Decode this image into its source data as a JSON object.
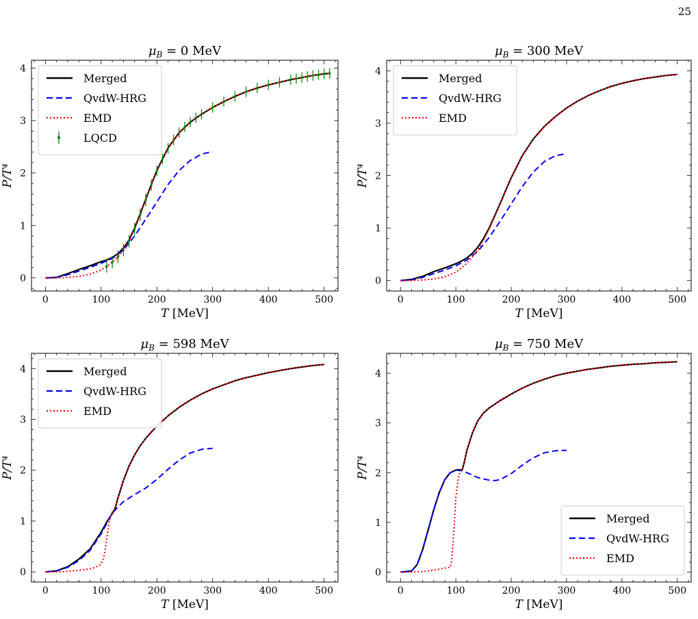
{
  "page": {
    "number": "25"
  },
  "chart_data": [
    {
      "type": "line",
      "title": "μB = 0 MeV",
      "xlabel": "T [MeV]",
      "ylabel": "P/T⁴",
      "xlim": [
        -25,
        525
      ],
      "ylim": [
        -0.25,
        4.15
      ],
      "xticks": [
        0,
        100,
        200,
        300,
        400,
        500
      ],
      "yticks": [
        0,
        1,
        2,
        3,
        4
      ],
      "legend_position": "upper-left",
      "series": [
        {
          "name": "Merged",
          "color": "#000000",
          "style": "solid",
          "x": [
            0,
            20,
            40,
            60,
            80,
            100,
            110,
            120,
            130,
            140,
            150,
            160,
            170,
            180,
            190,
            200,
            220,
            240,
            260,
            280,
            300,
            320,
            340,
            360,
            380,
            400,
            420,
            440,
            460,
            480,
            500,
            510
          ],
          "y": [
            0,
            0.01,
            0.08,
            0.16,
            0.23,
            0.31,
            0.34,
            0.39,
            0.46,
            0.57,
            0.72,
            0.95,
            1.22,
            1.5,
            1.78,
            2.05,
            2.48,
            2.77,
            2.97,
            3.12,
            3.25,
            3.36,
            3.46,
            3.55,
            3.62,
            3.68,
            3.73,
            3.78,
            3.82,
            3.86,
            3.89,
            3.9
          ]
        },
        {
          "name": "QvdW-HRG",
          "color": "#0000ff",
          "style": "dashed",
          "x": [
            0,
            20,
            40,
            60,
            80,
            100,
            120,
            140,
            160,
            180,
            200,
            220,
            240,
            260,
            280,
            300
          ],
          "y": [
            0,
            0.01,
            0.06,
            0.13,
            0.2,
            0.28,
            0.37,
            0.53,
            0.8,
            1.12,
            1.45,
            1.78,
            2.05,
            2.24,
            2.36,
            2.41
          ]
        },
        {
          "name": "EMD",
          "color": "#ff0000",
          "style": "dotted",
          "x": [
            0,
            20,
            40,
            60,
            80,
            100,
            110,
            120,
            130,
            140,
            150,
            160,
            170,
            180,
            190,
            200,
            220,
            240,
            260,
            280,
            300,
            320,
            340,
            360,
            380,
            400,
            420,
            440,
            460,
            480,
            500,
            510
          ],
          "y": [
            0,
            0,
            0.01,
            0.03,
            0.07,
            0.15,
            0.22,
            0.3,
            0.4,
            0.53,
            0.7,
            0.93,
            1.2,
            1.49,
            1.77,
            2.04,
            2.47,
            2.77,
            2.97,
            3.12,
            3.25,
            3.36,
            3.46,
            3.55,
            3.62,
            3.68,
            3.73,
            3.78,
            3.82,
            3.86,
            3.89,
            3.9
          ]
        },
        {
          "name": "LQCD",
          "color": "#008000",
          "style": "errorbar",
          "x": [
            110,
            120,
            130,
            140,
            150,
            160,
            170,
            180,
            190,
            200,
            210,
            220,
            230,
            240,
            250,
            260,
            270,
            280,
            300,
            320,
            340,
            360,
            380,
            400,
            420,
            440,
            450,
            460,
            470,
            480,
            490,
            500,
            510
          ],
          "y": [
            0.22,
            0.3,
            0.4,
            0.53,
            0.7,
            0.93,
            1.2,
            1.49,
            1.77,
            2.04,
            2.27,
            2.47,
            2.63,
            2.77,
            2.88,
            2.97,
            3.05,
            3.12,
            3.25,
            3.36,
            3.46,
            3.55,
            3.62,
            3.68,
            3.73,
            3.78,
            3.8,
            3.82,
            3.84,
            3.86,
            3.87,
            3.89,
            3.9
          ],
          "err": [
            0.12,
            0.12,
            0.12,
            0.12,
            0.12,
            0.12,
            0.12,
            0.12,
            0.11,
            0.1,
            0.1,
            0.1,
            0.1,
            0.1,
            0.1,
            0.1,
            0.1,
            0.1,
            0.1,
            0.1,
            0.1,
            0.1,
            0.1,
            0.1,
            0.1,
            0.1,
            0.1,
            0.1,
            0.1,
            0.1,
            0.1,
            0.1,
            0.1
          ]
        }
      ]
    },
    {
      "type": "line",
      "title": "μB = 300 MeV",
      "xlabel": "T [MeV]",
      "ylabel": "P/T⁴",
      "xlim": [
        -25,
        525
      ],
      "ylim": [
        -0.2,
        4.2
      ],
      "xticks": [
        0,
        100,
        200,
        300,
        400,
        500
      ],
      "yticks": [
        0,
        1,
        2,
        3,
        4
      ],
      "legend_position": "upper-left",
      "series": [
        {
          "name": "Merged",
          "color": "#000000",
          "style": "solid",
          "x": [
            0,
            20,
            40,
            60,
            80,
            100,
            110,
            120,
            130,
            140,
            150,
            160,
            170,
            180,
            190,
            200,
            220,
            240,
            260,
            280,
            300,
            320,
            340,
            360,
            380,
            400,
            420,
            440,
            460,
            480,
            500
          ],
          "y": [
            0,
            0.02,
            0.08,
            0.17,
            0.24,
            0.32,
            0.37,
            0.43,
            0.52,
            0.64,
            0.8,
            1.0,
            1.23,
            1.47,
            1.72,
            1.96,
            2.38,
            2.7,
            2.94,
            3.13,
            3.29,
            3.42,
            3.53,
            3.62,
            3.7,
            3.76,
            3.81,
            3.85,
            3.88,
            3.91,
            3.93
          ]
        },
        {
          "name": "QvdW-HRG",
          "color": "#0000ff",
          "style": "dashed",
          "x": [
            0,
            20,
            40,
            60,
            80,
            100,
            120,
            140,
            160,
            180,
            200,
            220,
            240,
            260,
            280,
            300
          ],
          "y": [
            0,
            0.01,
            0.06,
            0.13,
            0.2,
            0.28,
            0.39,
            0.56,
            0.82,
            1.13,
            1.46,
            1.79,
            2.07,
            2.27,
            2.38,
            2.42
          ]
        },
        {
          "name": "EMD",
          "color": "#ff0000",
          "style": "dotted",
          "x": [
            0,
            20,
            40,
            60,
            80,
            100,
            110,
            120,
            130,
            140,
            150,
            160,
            170,
            180,
            190,
            200,
            220,
            240,
            260,
            280,
            300,
            320,
            340,
            360,
            380,
            400,
            420,
            440,
            460,
            480,
            500
          ],
          "y": [
            0,
            0,
            0.01,
            0.03,
            0.07,
            0.16,
            0.24,
            0.33,
            0.45,
            0.59,
            0.77,
            0.98,
            1.22,
            1.46,
            1.71,
            1.96,
            2.38,
            2.7,
            2.94,
            3.13,
            3.29,
            3.42,
            3.53,
            3.62,
            3.7,
            3.76,
            3.81,
            3.85,
            3.88,
            3.91,
            3.93
          ]
        }
      ]
    },
    {
      "type": "line",
      "title": "μB = 598 MeV",
      "xlabel": "T [MeV]",
      "ylabel": "P/T⁴",
      "xlim": [
        -25,
        525
      ],
      "ylim": [
        -0.2,
        4.3
      ],
      "xticks": [
        0,
        100,
        200,
        300,
        400,
        500
      ],
      "yticks": [
        0,
        1,
        2,
        3,
        4
      ],
      "legend_position": "upper-left",
      "series": [
        {
          "name": "Merged",
          "color": "#000000",
          "style": "solid",
          "x": [
            0,
            20,
            40,
            60,
            80,
            100,
            110,
            120,
            125,
            130,
            140,
            150,
            160,
            170,
            180,
            200,
            220,
            240,
            260,
            280,
            300,
            320,
            340,
            360,
            380,
            400,
            420,
            440,
            460,
            480,
            500
          ],
          "y": [
            0,
            0.02,
            0.1,
            0.25,
            0.45,
            0.78,
            0.98,
            1.15,
            1.25,
            1.45,
            1.8,
            2.08,
            2.3,
            2.48,
            2.63,
            2.87,
            3.07,
            3.24,
            3.38,
            3.5,
            3.6,
            3.68,
            3.76,
            3.82,
            3.87,
            3.92,
            3.96,
            4.0,
            4.03,
            4.06,
            4.08
          ]
        },
        {
          "name": "QvdW-HRG",
          "color": "#0000ff",
          "style": "dashed",
          "x": [
            0,
            20,
            40,
            60,
            80,
            100,
            110,
            120,
            130,
            140,
            160,
            180,
            200,
            220,
            240,
            260,
            280,
            300
          ],
          "y": [
            0,
            0.02,
            0.09,
            0.22,
            0.42,
            0.75,
            0.95,
            1.15,
            1.28,
            1.38,
            1.52,
            1.65,
            1.82,
            2.02,
            2.2,
            2.34,
            2.41,
            2.43
          ]
        },
        {
          "name": "EMD",
          "color": "#ff0000",
          "style": "dotted",
          "x": [
            0,
            20,
            40,
            60,
            80,
            90,
            100,
            105,
            110,
            115,
            120,
            125,
            130,
            140,
            150,
            160,
            170,
            180,
            200,
            220,
            240,
            260,
            280,
            300,
            320,
            340,
            360,
            380,
            400,
            420,
            440,
            460,
            480,
            500
          ],
          "y": [
            0,
            0,
            0.01,
            0.03,
            0.06,
            0.09,
            0.15,
            0.3,
            0.65,
            1.0,
            1.18,
            1.25,
            1.45,
            1.8,
            2.08,
            2.3,
            2.48,
            2.63,
            2.87,
            3.07,
            3.24,
            3.38,
            3.5,
            3.6,
            3.68,
            3.76,
            3.82,
            3.87,
            3.92,
            3.96,
            4.0,
            4.03,
            4.06,
            4.08
          ]
        }
      ]
    },
    {
      "type": "line",
      "title": "μB = 750 MeV",
      "xlabel": "T [MeV]",
      "ylabel": "P/T⁴",
      "xlim": [
        -25,
        525
      ],
      "ylim": [
        -0.2,
        4.4
      ],
      "xticks": [
        0,
        100,
        200,
        300,
        400,
        500
      ],
      "yticks": [
        0,
        1,
        2,
        3,
        4
      ],
      "legend_position": "lower-right",
      "series": [
        {
          "name": "Merged",
          "color": "#000000",
          "style": "solid",
          "x": [
            0,
            20,
            30,
            40,
            50,
            60,
            70,
            80,
            90,
            100,
            105,
            110,
            112,
            115,
            120,
            130,
            140,
            150,
            160,
            180,
            200,
            220,
            240,
            260,
            280,
            300,
            320,
            340,
            360,
            380,
            400,
            420,
            440,
            460,
            480,
            500
          ],
          "y": [
            0,
            0.02,
            0.15,
            0.45,
            0.85,
            1.25,
            1.6,
            1.86,
            2.0,
            2.05,
            2.06,
            2.05,
            2.07,
            2.2,
            2.45,
            2.8,
            3.05,
            3.2,
            3.3,
            3.45,
            3.58,
            3.7,
            3.8,
            3.88,
            3.95,
            4.0,
            4.04,
            4.08,
            4.11,
            4.14,
            4.16,
            4.18,
            4.19,
            4.21,
            4.22,
            4.23
          ]
        },
        {
          "name": "QvdW-HRG",
          "color": "#0000ff",
          "style": "dashed",
          "x": [
            0,
            20,
            30,
            40,
            50,
            60,
            70,
            80,
            90,
            100,
            110,
            120,
            140,
            160,
            170,
            180,
            200,
            220,
            240,
            260,
            280,
            300
          ],
          "y": [
            0,
            0.02,
            0.15,
            0.45,
            0.85,
            1.25,
            1.6,
            1.86,
            2.0,
            2.05,
            2.04,
            2.0,
            1.9,
            1.85,
            1.84,
            1.86,
            1.98,
            2.15,
            2.3,
            2.4,
            2.44,
            2.45
          ]
        },
        {
          "name": "EMD",
          "color": "#ff0000",
          "style": "dotted",
          "x": [
            0,
            20,
            40,
            60,
            80,
            90,
            92,
            95,
            98,
            100,
            105,
            110,
            112,
            115,
            120,
            130,
            140,
            150,
            160,
            180,
            200,
            220,
            240,
            260,
            280,
            300,
            320,
            340,
            360,
            380,
            400,
            420,
            440,
            460,
            480,
            500
          ],
          "y": [
            0,
            0,
            0.01,
            0.04,
            0.08,
            0.1,
            0.2,
            0.6,
            1.1,
            1.5,
            1.95,
            2.03,
            2.07,
            2.2,
            2.45,
            2.8,
            3.05,
            3.2,
            3.3,
            3.45,
            3.58,
            3.7,
            3.8,
            3.88,
            3.95,
            4.0,
            4.04,
            4.08,
            4.11,
            4.14,
            4.16,
            4.18,
            4.19,
            4.21,
            4.22,
            4.23
          ]
        }
      ]
    }
  ]
}
